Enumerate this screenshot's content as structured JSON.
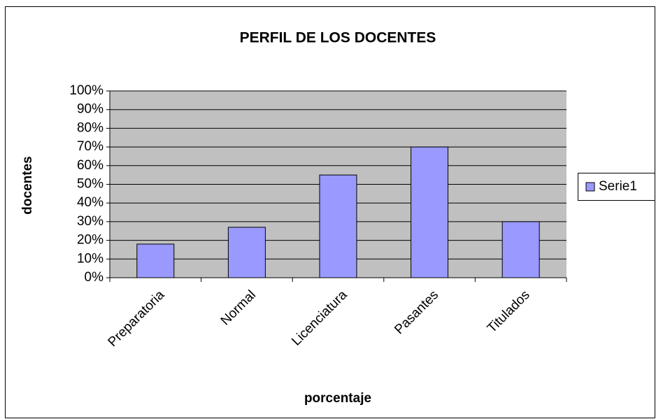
{
  "chart_data": {
    "type": "bar",
    "title": "PERFIL DE LOS DOCENTES",
    "categories": [
      "Preparatoria",
      "Normal",
      "Licenciatura",
      "Pasantes",
      "Titulados"
    ],
    "series": [
      {
        "name": "Serie1",
        "color": "#9999ff",
        "values": [
          18,
          27,
          55,
          70,
          30
        ]
      }
    ],
    "ylim": [
      0,
      100
    ],
    "yticks": [
      {
        "value": 0,
        "label": "0%"
      },
      {
        "value": 10,
        "label": "10%"
      },
      {
        "value": 20,
        "label": "20%"
      },
      {
        "value": 30,
        "label": "30%"
      },
      {
        "value": 40,
        "label": "40%"
      },
      {
        "value": 50,
        "label": "50%"
      },
      {
        "value": 60,
        "label": "60%"
      },
      {
        "value": 70,
        "label": "70%"
      },
      {
        "value": 80,
        "label": "80%"
      },
      {
        "value": 90,
        "label": "90%"
      },
      {
        "value": 100,
        "label": "100%"
      }
    ],
    "y_label": "docentes",
    "x_label": "porcentaje",
    "grid": true,
    "legend": "right"
  }
}
